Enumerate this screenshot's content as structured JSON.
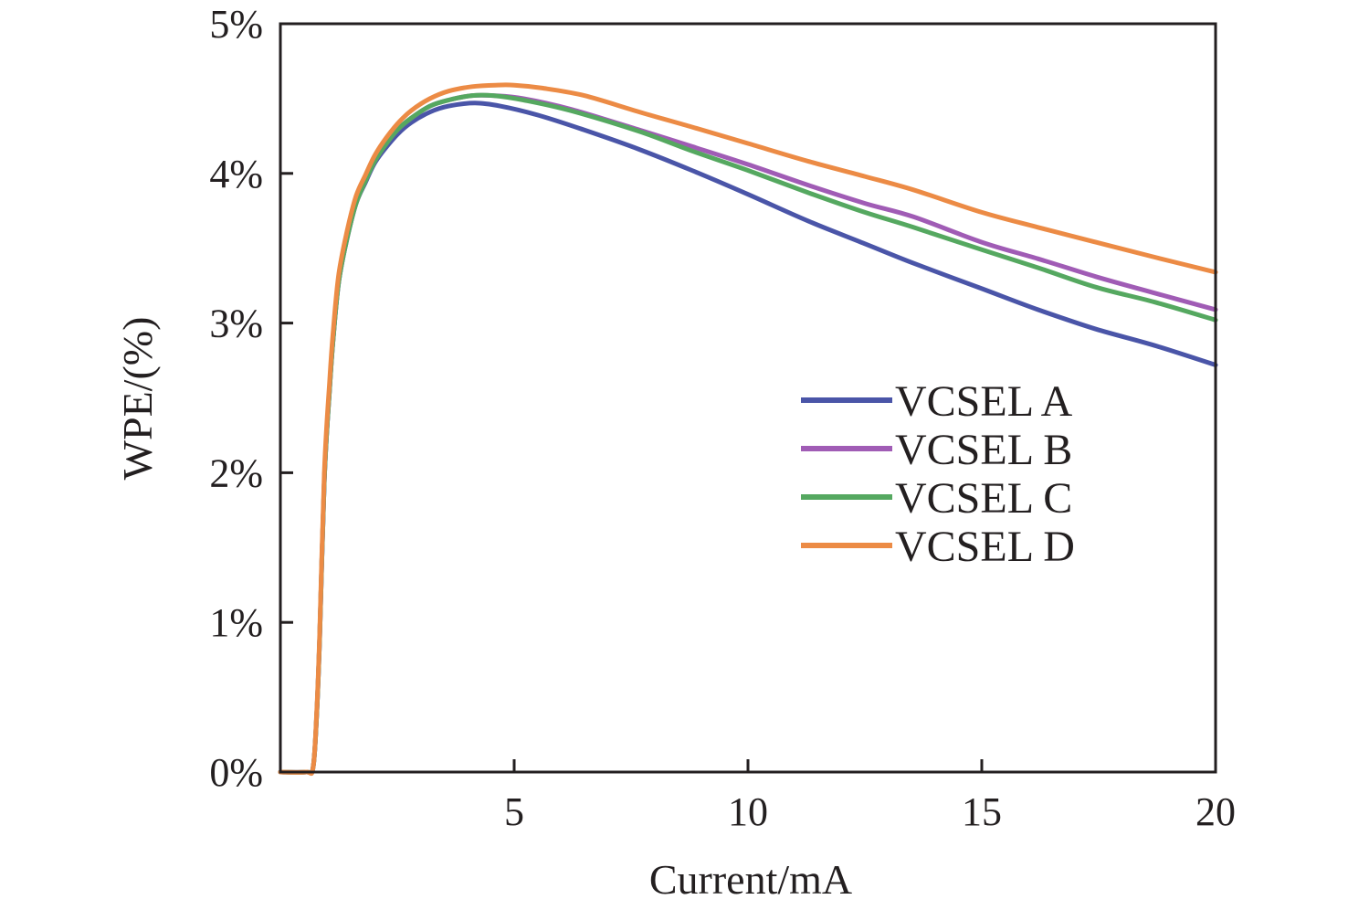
{
  "chart_data": {
    "type": "line",
    "title": "",
    "xlabel": "Current/mA",
    "ylabel": "WPE/(%)",
    "xlim": [
      0,
      20
    ],
    "ylim": [
      0,
      5
    ],
    "xticks": [
      5,
      10,
      15,
      20
    ],
    "xtick_labels": [
      "5",
      "10",
      "15",
      "20"
    ],
    "yticks": [
      0,
      1,
      2,
      3,
      4,
      5
    ],
    "ytick_labels": [
      "0%",
      "1%",
      "2%",
      "3%",
      "4%",
      "5%"
    ],
    "grid": false,
    "legend_position": "center-right",
    "series": [
      {
        "name": "VCSEL A",
        "color": "#4a55a8",
        "x": [
          0,
          0.55,
          0.7,
          0.78,
          0.84,
          0.94,
          1.05,
          1.13,
          1.25,
          1.43,
          1.62,
          1.82,
          2.0,
          2.2,
          2.5,
          2.8,
          3.2,
          3.6,
          4.16,
          4.7,
          5.5,
          6.5,
          7.68,
          8.8,
          10.0,
          11.3,
          12.5,
          13.54,
          15.0,
          16.2,
          17.44,
          18.7,
          20.0
        ],
        "y": [
          0,
          0,
          0.03,
          0.4,
          0.89,
          1.95,
          2.55,
          2.9,
          3.28,
          3.57,
          3.8,
          3.94,
          4.06,
          4.15,
          4.26,
          4.34,
          4.41,
          4.45,
          4.47,
          4.45,
          4.39,
          4.29,
          4.16,
          4.02,
          3.86,
          3.68,
          3.53,
          3.4,
          3.23,
          3.09,
          2.96,
          2.85,
          2.72
        ]
      },
      {
        "name": "VCSEL B",
        "color": "#a05cb5",
        "x": [
          0,
          0.55,
          0.7,
          0.78,
          0.84,
          0.94,
          1.05,
          1.13,
          1.25,
          1.43,
          1.62,
          1.82,
          2.0,
          2.2,
          2.5,
          2.8,
          3.2,
          3.6,
          4.1,
          4.55,
          5.2,
          6.2,
          7.68,
          8.8,
          10.0,
          11.3,
          12.5,
          13.54,
          15.0,
          16.2,
          17.44,
          18.7,
          20.0
        ],
        "y": [
          0,
          0,
          0.03,
          0.4,
          0.89,
          1.95,
          2.55,
          2.9,
          3.28,
          3.57,
          3.8,
          3.95,
          4.07,
          4.17,
          4.29,
          4.37,
          4.45,
          4.49,
          4.52,
          4.52,
          4.5,
          4.43,
          4.29,
          4.18,
          4.06,
          3.92,
          3.8,
          3.71,
          3.54,
          3.43,
          3.31,
          3.2,
          3.09
        ]
      },
      {
        "name": "VCSEL C",
        "color": "#55a860",
        "x": [
          0,
          0.55,
          0.7,
          0.78,
          0.84,
          0.94,
          1.05,
          1.13,
          1.25,
          1.43,
          1.62,
          1.82,
          2.0,
          2.2,
          2.5,
          2.8,
          3.2,
          3.6,
          4.1,
          4.55,
          5.2,
          6.2,
          7.68,
          8.8,
          10.0,
          11.3,
          12.5,
          13.54,
          15.0,
          16.2,
          17.44,
          18.7,
          20.0
        ],
        "y": [
          0,
          0,
          0.03,
          0.4,
          0.89,
          1.95,
          2.55,
          2.9,
          3.28,
          3.57,
          3.8,
          3.95,
          4.07,
          4.17,
          4.29,
          4.37,
          4.45,
          4.49,
          4.52,
          4.52,
          4.49,
          4.42,
          4.28,
          4.15,
          4.02,
          3.87,
          3.74,
          3.64,
          3.49,
          3.37,
          3.24,
          3.14,
          3.02
        ]
      },
      {
        "name": "VCSEL D",
        "color": "#ec8b45",
        "x": [
          0,
          0.55,
          0.7,
          0.78,
          0.84,
          0.94,
          1.05,
          1.13,
          1.25,
          1.43,
          1.62,
          1.82,
          2.0,
          2.2,
          2.5,
          2.8,
          3.2,
          3.6,
          4.1,
          4.6,
          5.0,
          5.6,
          6.5,
          7.68,
          8.8,
          10.0,
          11.3,
          12.5,
          13.54,
          15.0,
          16.2,
          17.44,
          18.7,
          20.0
        ],
        "y": [
          0,
          0,
          0.03,
          0.42,
          0.92,
          2.0,
          2.6,
          2.95,
          3.33,
          3.62,
          3.85,
          3.99,
          4.11,
          4.21,
          4.33,
          4.42,
          4.5,
          4.55,
          4.58,
          4.59,
          4.59,
          4.57,
          4.52,
          4.41,
          4.31,
          4.2,
          4.08,
          3.98,
          3.89,
          3.74,
          3.64,
          3.54,
          3.44,
          3.34
        ]
      }
    ]
  }
}
